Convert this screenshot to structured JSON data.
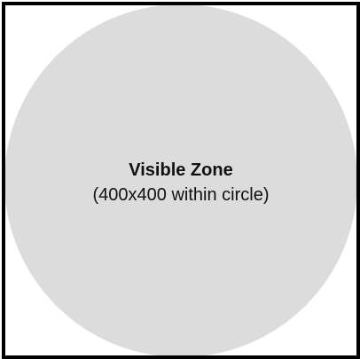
{
  "zone": {
    "title": "Visible Zone",
    "subtitle": "(400x400 within circle)"
  },
  "colors": {
    "frame_border": "#000000",
    "circle_fill": "#dcdcdc",
    "background": "#ffffff",
    "text": "#111111"
  }
}
